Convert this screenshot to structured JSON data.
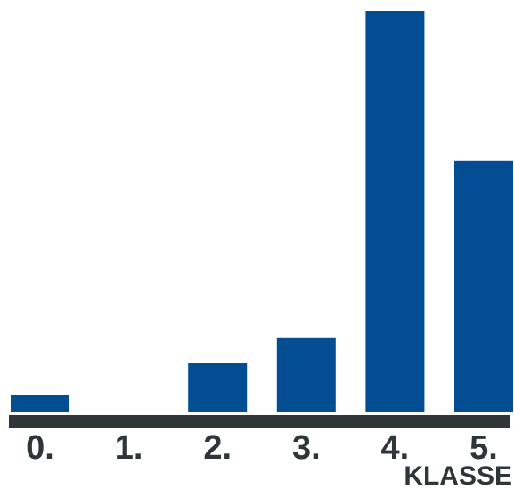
{
  "chart_data": {
    "type": "bar",
    "categories": [
      "0.",
      "1.",
      "2.",
      "3.",
      "4.",
      "5."
    ],
    "values": [
      4,
      0,
      12,
      18.5,
      100,
      62.5
    ],
    "xlabel": "KLASSE",
    "ylabel": "",
    "ylim": [
      0,
      100
    ],
    "grid": false,
    "legend": "none",
    "colors": {
      "bar": "#034e93",
      "axis": "#2f3638",
      "text": "#2f3638",
      "background": "#ffffff"
    }
  }
}
